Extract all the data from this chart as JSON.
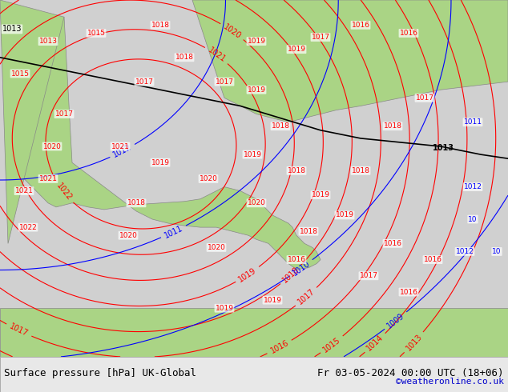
{
  "title_left": "Surface pressure [hPa] UK-Global",
  "title_right": "Fr 03-05-2024 00:00 UTC (18+06)",
  "credit": "©weatheronline.co.uk",
  "bg_color": "#d0d0d0",
  "land_color": "#aad485",
  "sea_color": "#d8d8d8",
  "contour_color_red": "#ff0000",
  "contour_color_blue": "#0000ff",
  "contour_color_black": "#000000",
  "footer_bg": "#e8e8e8",
  "footer_text_color": "#000000",
  "credit_color": "#0000cc",
  "figsize": [
    6.34,
    4.9
  ],
  "dpi": 100
}
